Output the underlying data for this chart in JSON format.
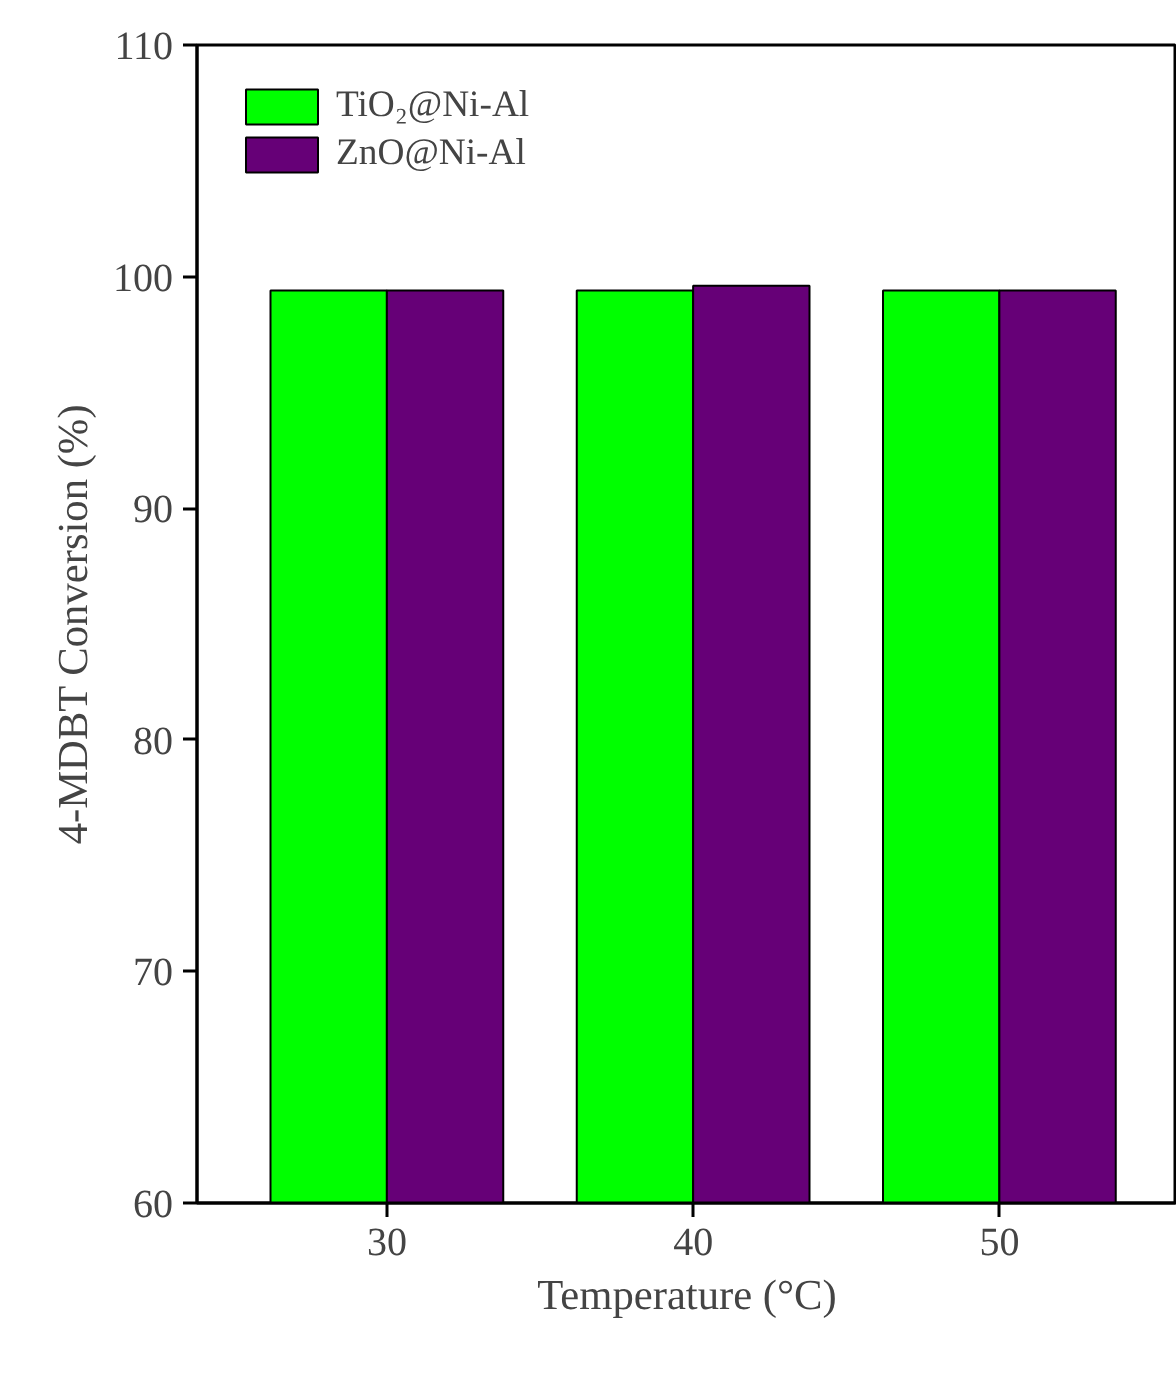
{
  "chart_data": {
    "type": "bar",
    "xlabel": "Temperature (°C)",
    "ylabel": "4-MDBT Conversion (%)",
    "categories": [
      "30",
      "40",
      "50"
    ],
    "series": [
      {
        "name": "TiO₂@Ni-Al",
        "color": "#00ff00",
        "values": [
          99.4,
          99.4,
          99.4
        ]
      },
      {
        "name": "ZnO@Ni-Al",
        "color": "#660077",
        "values": [
          99.4,
          99.6,
          99.4
        ]
      }
    ],
    "ylim": [
      60,
      110
    ],
    "yticks": [
      60,
      70,
      80,
      90,
      100,
      110
    ],
    "grid": false,
    "legend": "top left"
  }
}
